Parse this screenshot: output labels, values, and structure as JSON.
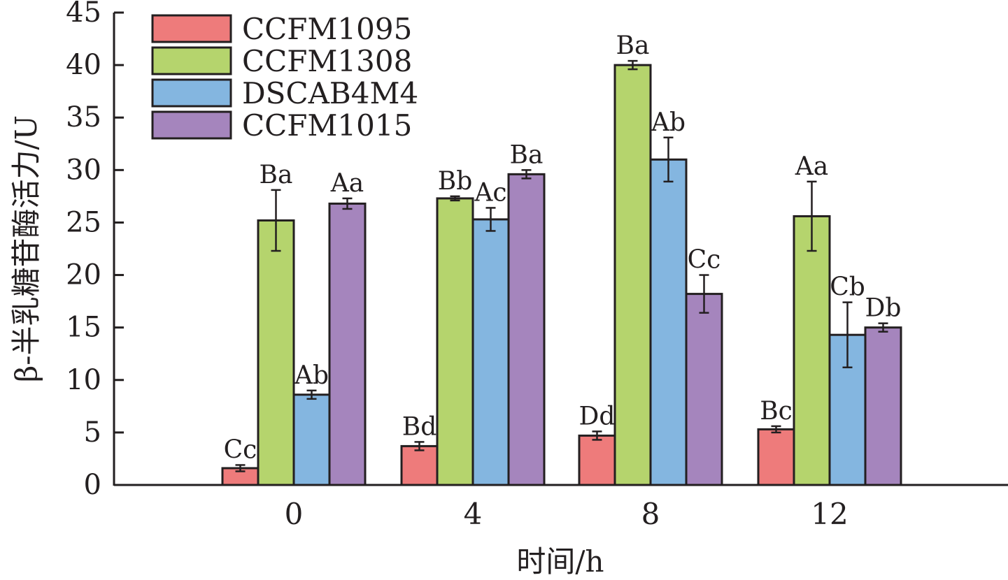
{
  "chart_data": {
    "type": "bar",
    "xlabel": "时间/h",
    "ylabel": "β-半乳糖苷酶活力/U",
    "ylim": [
      0,
      45
    ],
    "yticks": [
      0,
      5,
      10,
      15,
      20,
      25,
      30,
      35,
      40,
      45
    ],
    "categories": [
      "0",
      "4",
      "8",
      "12"
    ],
    "legend_position": "top-left",
    "series": [
      {
        "name": "CCFM1095",
        "color": "#ee7b7b",
        "values": [
          1.6,
          3.7,
          4.7,
          5.3
        ],
        "errors": [
          0.3,
          0.4,
          0.4,
          0.3
        ],
        "labels": [
          "Cc",
          "Bd",
          "Dd",
          "Bc"
        ]
      },
      {
        "name": "CCFM1308",
        "color": "#b5d46d",
        "values": [
          25.2,
          27.3,
          40.0,
          25.6
        ],
        "errors": [
          2.9,
          0.2,
          0.4,
          3.3
        ],
        "labels": [
          "Ba",
          "Bb",
          "Ba",
          "Aa"
        ]
      },
      {
        "name": "DSCAB4M4",
        "color": "#84b6e0",
        "values": [
          8.6,
          25.3,
          31.0,
          14.3
        ],
        "errors": [
          0.4,
          1.1,
          2.1,
          3.1
        ],
        "labels": [
          "Ab",
          "Ac",
          "Ab",
          "Cb"
        ]
      },
      {
        "name": "CCFM1015",
        "color": "#a585bd",
        "values": [
          26.8,
          29.6,
          18.2,
          15.0
        ],
        "errors": [
          0.5,
          0.4,
          1.8,
          0.4
        ],
        "labels": [
          "Aa",
          "Ba",
          "Cc",
          "Db"
        ]
      }
    ]
  }
}
